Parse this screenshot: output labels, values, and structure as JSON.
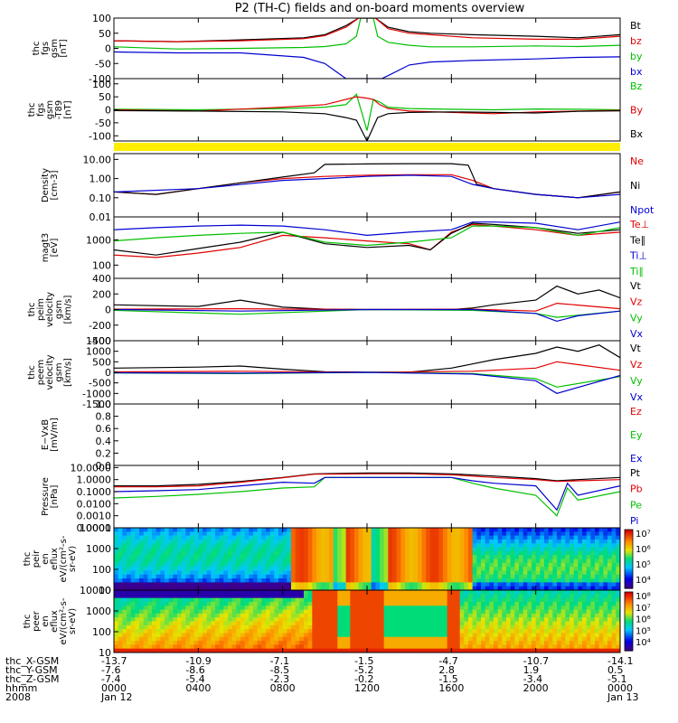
{
  "title": "P2 (TH-C) fields and on-board moments overview",
  "colors": {
    "black": "#000000",
    "red": "#e00000",
    "green": "#00c000",
    "blue": "#0000d0",
    "yellow": "#ffee00"
  },
  "chart_data": [
    {
      "id": "fgs",
      "type": "line",
      "ylabel": [
        "thc",
        "fgs",
        "gsm",
        "[nT]"
      ],
      "ylim": [
        -100,
        100
      ],
      "yticks": [
        "100",
        "50",
        "0",
        "-50",
        "-100"
      ],
      "series": [
        {
          "name": "Bt",
          "color": "black",
          "x": [
            0,
            3,
            6,
            9,
            10,
            11,
            11.6,
            12.4,
            13,
            14,
            15,
            17,
            20,
            22,
            24
          ],
          "y": [
            25,
            22,
            28,
            35,
            45,
            75,
            100,
            100,
            70,
            55,
            50,
            45,
            40,
            35,
            45
          ]
        },
        {
          "name": "bz",
          "color": "red",
          "x": [
            0,
            3,
            6,
            9,
            10,
            11,
            11.6,
            12.4,
            13,
            14,
            15,
            17,
            20,
            22,
            24
          ],
          "y": [
            25,
            22,
            25,
            32,
            42,
            70,
            100,
            100,
            65,
            50,
            45,
            35,
            30,
            30,
            40
          ]
        },
        {
          "name": "by",
          "color": "green",
          "x": [
            0,
            3,
            6,
            9,
            10,
            11,
            11.5,
            11.7,
            12.3,
            12.5,
            13,
            14,
            15,
            17,
            20,
            22,
            24
          ],
          "y": [
            5,
            -2,
            0,
            3,
            6,
            15,
            40,
            100,
            100,
            40,
            20,
            10,
            5,
            5,
            8,
            6,
            10
          ]
        },
        {
          "name": "bx",
          "color": "blue",
          "x": [
            0,
            3,
            6,
            9,
            10,
            10.5,
            11,
            11.3,
            12.7,
            13,
            14,
            15,
            17,
            20,
            22,
            24
          ],
          "y": [
            -12,
            -15,
            -15,
            -30,
            -50,
            -75,
            -100,
            -100,
            -100,
            -90,
            -55,
            -45,
            -40,
            -35,
            -30,
            -28
          ]
        }
      ]
    },
    {
      "id": "fgs-minus-t89",
      "type": "line",
      "ylabel": [
        "thc",
        "fgs",
        "gsm",
        "-T89",
        "[nT]"
      ],
      "ylim": [
        -120,
        120
      ],
      "yticks": [
        "100",
        "50",
        "0",
        "-50",
        "-100"
      ],
      "series": [
        {
          "name": "Bz",
          "color": "green",
          "x": [
            0,
            4,
            8,
            10,
            11,
            11.5,
            12,
            12.3,
            12.6,
            13,
            14,
            16,
            18,
            20,
            22,
            24
          ],
          "y": [
            2,
            0,
            5,
            10,
            20,
            60,
            -80,
            40,
            30,
            10,
            5,
            2,
            0,
            3,
            2,
            0
          ]
        },
        {
          "name": "By",
          "color": "red",
          "x": [
            0,
            4,
            8,
            10,
            10.5,
            11,
            11.5,
            12,
            12.3,
            12.6,
            13,
            14,
            16,
            18,
            20,
            22,
            24
          ],
          "y": [
            0,
            -5,
            10,
            20,
            30,
            40,
            50,
            45,
            40,
            20,
            5,
            -5,
            -10,
            -15,
            -8,
            -5,
            -2
          ]
        },
        {
          "name": "Bx",
          "color": "black",
          "x": [
            0,
            4,
            8,
            10,
            11,
            11.5,
            12,
            12.5,
            13,
            14,
            16,
            18,
            20,
            22,
            24
          ],
          "y": [
            -3,
            -5,
            -8,
            -15,
            -30,
            -40,
            -120,
            -30,
            -15,
            -10,
            -8,
            -10,
            -12,
            -6,
            -4
          ]
        }
      ]
    },
    {
      "id": "density",
      "type": "line",
      "log": true,
      "ylabel": [
        "Density",
        "[cm-3]"
      ],
      "ylim": [
        0.01,
        20
      ],
      "yticks": [
        "10.00",
        "1.00",
        "0.10",
        "0.01"
      ],
      "series": [
        {
          "name": "Ne",
          "color": "red",
          "x": [
            0,
            2,
            4,
            6,
            8,
            10,
            12,
            14,
            16,
            17,
            18,
            20,
            22,
            24
          ],
          "y": [
            0.2,
            0.15,
            0.3,
            0.6,
            1.0,
            1.3,
            1.5,
            1.6,
            1.6,
            0.8,
            0.3,
            0.15,
            0.1,
            0.2
          ]
        },
        {
          "name": "Ni",
          "color": "black",
          "x": [
            0,
            2,
            4,
            6,
            8,
            9.5,
            10,
            12,
            14,
            16,
            16.8,
            17.2,
            18,
            20,
            22,
            24
          ],
          "y": [
            0.2,
            0.15,
            0.3,
            0.6,
            1.2,
            2.0,
            5.5,
            5.8,
            6.0,
            6.0,
            5.0,
            0.5,
            0.3,
            0.15,
            0.1,
            0.2
          ]
        },
        {
          "name": "Npot",
          "color": "blue",
          "x": [
            0,
            4,
            8,
            10,
            12,
            14,
            16,
            17,
            18,
            20,
            22,
            24
          ],
          "y": [
            0.2,
            0.3,
            0.8,
            1.0,
            1.3,
            1.5,
            1.3,
            0.5,
            0.3,
            0.15,
            0.1,
            0.15
          ]
        }
      ]
    },
    {
      "id": "magt3",
      "type": "line",
      "log": true,
      "ylabel": [
        "magt3",
        "[eV]"
      ],
      "ylim": [
        30,
        8000
      ],
      "yticks": [
        "1000",
        "100"
      ],
      "series": [
        {
          "name": "Te⊥",
          "color": "red",
          "x": [
            0,
            2,
            4,
            6,
            8,
            10,
            12,
            14,
            15,
            16,
            17,
            18,
            20,
            22,
            24
          ],
          "y": [
            250,
            200,
            300,
            500,
            1500,
            1200,
            900,
            700,
            400,
            2000,
            4000,
            3500,
            2500,
            1500,
            2000
          ]
        },
        {
          "name": "Te∥",
          "color": "black",
          "x": [
            0,
            2,
            4,
            6,
            8,
            10,
            12,
            14,
            15,
            16,
            17,
            18,
            20,
            22,
            24
          ],
          "y": [
            400,
            250,
            450,
            800,
            2000,
            700,
            500,
            600,
            400,
            1800,
            4500,
            4000,
            3000,
            1800,
            2500
          ]
        },
        {
          "name": "Ti⊥",
          "color": "blue",
          "x": [
            0,
            2,
            4,
            6,
            8,
            10,
            12,
            14,
            16,
            17,
            18,
            20,
            22,
            24
          ],
          "y": [
            2500,
            3000,
            3500,
            3800,
            3500,
            2500,
            1500,
            2000,
            2500,
            5000,
            5000,
            4500,
            2500,
            5000
          ]
        },
        {
          "name": "Ti∥",
          "color": "green",
          "x": [
            0,
            2,
            4,
            6,
            8,
            10,
            12,
            14,
            16,
            17,
            18,
            20,
            22,
            24
          ],
          "y": [
            900,
            1200,
            1500,
            1800,
            2000,
            800,
            600,
            800,
            1200,
            3500,
            3500,
            3000,
            1500,
            3000
          ]
        }
      ]
    },
    {
      "id": "peim-velocity",
      "type": "line",
      "ylabel": [
        "thc",
        "peim",
        "velocity",
        "gsm",
        "[km/s]"
      ],
      "ylim": [
        -400,
        400
      ],
      "yticks": [
        "400",
        "200",
        "0",
        "-200",
        "-400"
      ],
      "series": [
        {
          "name": "Vt",
          "color": "black",
          "x": [
            0,
            4,
            6,
            8,
            10,
            12,
            14,
            16,
            17,
            18,
            20,
            21,
            22,
            23,
            24
          ],
          "y": [
            60,
            40,
            120,
            30,
            5,
            0,
            0,
            0,
            20,
            60,
            120,
            300,
            200,
            250,
            150
          ]
        },
        {
          "name": "Vz",
          "color": "red",
          "x": [
            0,
            6,
            12,
            17,
            20,
            21,
            24
          ],
          "y": [
            5,
            10,
            0,
            5,
            -20,
            80,
            10
          ]
        },
        {
          "name": "Vy",
          "color": "green",
          "x": [
            0,
            6,
            12,
            17,
            20,
            21,
            24
          ],
          "y": [
            -10,
            -60,
            0,
            -10,
            -50,
            -100,
            -20
          ]
        },
        {
          "name": "Vx",
          "color": "blue",
          "x": [
            0,
            6,
            12,
            17,
            20,
            21,
            22,
            24
          ],
          "y": [
            0,
            -20,
            0,
            0,
            -50,
            -150,
            -80,
            -20
          ]
        }
      ]
    },
    {
      "id": "peem-velocity",
      "type": "line",
      "ylabel": [
        "thc",
        "peem",
        "velocity",
        "gsm",
        "[km/s]"
      ],
      "ylim": [
        -1500,
        1500
      ],
      "yticks": [
        "1500",
        "1000",
        "500",
        "0",
        "-500",
        "-1000",
        "-1500"
      ],
      "series": [
        {
          "name": "Vt",
          "color": "black",
          "x": [
            0,
            4,
            6,
            8,
            10,
            12,
            14,
            16,
            17,
            18,
            20,
            21,
            22,
            23,
            24
          ],
          "y": [
            200,
            250,
            300,
            150,
            30,
            10,
            10,
            200,
            400,
            600,
            900,
            1200,
            1000,
            1300,
            700
          ]
        },
        {
          "name": "Vz",
          "color": "red",
          "x": [
            0,
            6,
            12,
            17,
            20,
            21,
            24
          ],
          "y": [
            20,
            50,
            0,
            50,
            200,
            500,
            100
          ]
        },
        {
          "name": "Vy",
          "color": "green",
          "x": [
            0,
            6,
            12,
            17,
            20,
            21,
            24
          ],
          "y": [
            -30,
            -60,
            0,
            -60,
            -300,
            -700,
            -200
          ]
        },
        {
          "name": "Vx",
          "color": "blue",
          "x": [
            0,
            6,
            12,
            17,
            20,
            21,
            24
          ],
          "y": [
            -20,
            -40,
            0,
            -80,
            -400,
            -1000,
            -150
          ]
        }
      ]
    },
    {
      "id": "e-vxb",
      "type": "line",
      "ylabel": [
        "E−VxB",
        "[mV/m]"
      ],
      "ylim": [
        0,
        1
      ],
      "yticks": [
        "1.0",
        "0.8",
        "0.6",
        "0.4",
        "0.2",
        "0.0"
      ],
      "series": [
        {
          "name": "Ez",
          "color": "red",
          "x": [],
          "y": []
        },
        {
          "name": "Ey",
          "color": "green",
          "x": [],
          "y": []
        },
        {
          "name": "Ex",
          "color": "blue",
          "x": [],
          "y": []
        }
      ]
    },
    {
      "id": "pressure",
      "type": "line",
      "log": true,
      "ylabel": [
        "Pressure",
        "[nPa]"
      ],
      "ylim": [
        0.0001,
        15
      ],
      "yticks": [
        "10.0000",
        "1.0000",
        "0.1000",
        "0.0100",
        "0.0010",
        "0.0001"
      ],
      "series": [
        {
          "name": "Pt",
          "color": "black",
          "x": [
            0,
            2,
            4,
            6,
            8,
            9.5,
            12,
            14,
            16,
            18,
            20,
            21,
            22,
            24
          ],
          "y": [
            0.3,
            0.3,
            0.4,
            0.7,
            1.5,
            3.0,
            3.5,
            3.5,
            3.0,
            2.0,
            1.2,
            0.8,
            1.0,
            1.5
          ]
        },
        {
          "name": "Pb",
          "color": "red",
          "x": [
            0,
            2,
            4,
            6,
            8,
            9.5,
            12,
            14,
            16,
            18,
            20,
            21,
            22,
            24
          ],
          "y": [
            0.25,
            0.25,
            0.3,
            0.6,
            1.4,
            2.8,
            3.0,
            3.0,
            2.5,
            1.5,
            1.0,
            0.7,
            0.8,
            1.0
          ]
        },
        {
          "name": "Pe",
          "color": "green",
          "x": [
            0,
            2,
            4,
            6,
            8,
            9.5,
            10,
            14,
            16,
            17,
            18,
            20,
            21,
            21.5,
            22,
            24
          ],
          "y": [
            0.03,
            0.04,
            0.06,
            0.1,
            0.2,
            0.25,
            1.5,
            1.5,
            1.5,
            0.5,
            0.2,
            0.05,
            0.001,
            0.2,
            0.02,
            0.1
          ]
        },
        {
          "name": "Pi",
          "color": "blue",
          "x": [
            0,
            2,
            4,
            6,
            8,
            9.5,
            10,
            14,
            16,
            17,
            18,
            20,
            21,
            21.5,
            22,
            24
          ],
          "y": [
            0.1,
            0.12,
            0.15,
            0.3,
            0.6,
            0.5,
            1.5,
            1.5,
            1.5,
            0.8,
            0.5,
            0.3,
            0.003,
            0.5,
            0.05,
            0.3
          ]
        }
      ]
    },
    {
      "id": "peir-eflux",
      "type": "heatmap",
      "ylabel": [
        "thc",
        "peir",
        "en",
        "eflux",
        "eV/(cm²-s-",
        "sr-eV)"
      ],
      "ylim": [
        8,
        25000
      ],
      "yticks": [
        "10000",
        "1000",
        "100",
        "10"
      ],
      "colorbar": {
        "ticks": [
          "10⁷",
          "10⁶",
          "10⁵",
          "10⁴"
        ]
      }
    },
    {
      "id": "peer-eflux",
      "type": "heatmap",
      "ylabel": [
        "thc",
        "peer",
        "en",
        "eflux",
        "eV/(cm²-s-",
        "sr-eV)"
      ],
      "ylim": [
        8,
        25000
      ],
      "yticks": [
        "10000",
        "1000",
        "100",
        "10"
      ],
      "colorbar": {
        "ticks": [
          "10⁸",
          "10⁷",
          "10⁶",
          "10⁵",
          "10⁴"
        ]
      }
    }
  ],
  "xaxis": {
    "row_labels": [
      "thc_X-GSM",
      "thc_Y-GSM",
      "thc_Z-GSM",
      "hhmm",
      "2008"
    ],
    "columns": [
      [
        "-13.7",
        "-7.6",
        "-7.4",
        "0000",
        "Jan 12"
      ],
      [
        "-10.9",
        "-8.6",
        "-5.4",
        "0400",
        ""
      ],
      [
        "-7.1",
        "-8.5",
        "-2.3",
        "0800",
        ""
      ],
      [
        "-1.5",
        "-5.2",
        "-0.2",
        "1200",
        ""
      ],
      [
        "-4.7",
        "2.8",
        "-1.5",
        "1600",
        ""
      ],
      [
        "-10.7",
        "1.9",
        "-3.4",
        "2000",
        ""
      ],
      [
        "-14.1",
        "0.5",
        "-5.1",
        "0000",
        "Jan 13"
      ]
    ]
  }
}
